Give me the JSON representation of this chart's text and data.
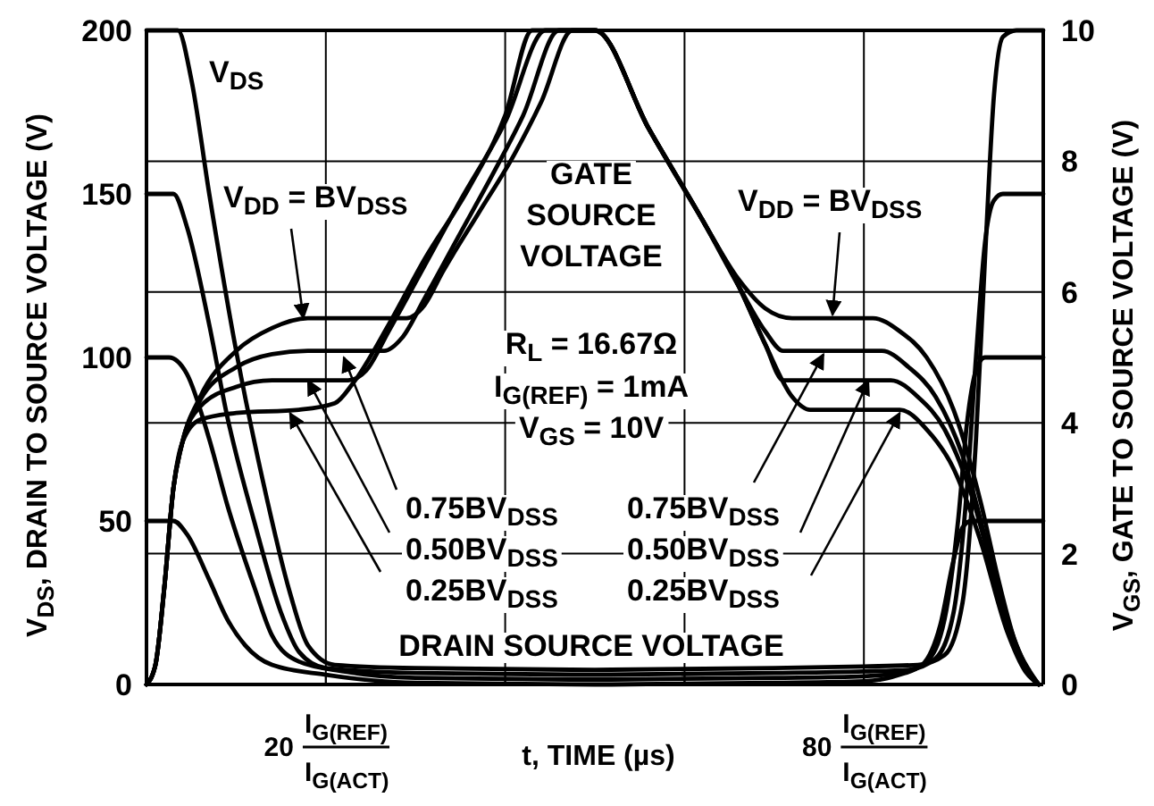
{
  "chart_data": {
    "type": "line",
    "xlabel": "t, TIME (µs)",
    "ylabel": "V$_{DS}$, DRAIN TO SOURCE VOLTAGE (V)",
    "y2label": "V$_{GS}$, GATE TO SOURCE VOLTAGE (V)",
    "xlim": [
      0,
      100
    ],
    "xticks": [
      {
        "value": 20,
        "label": "20 I$_{G(REF)}$ I$_{G(ACT)}$"
      },
      {
        "value": 40,
        "label": null
      },
      {
        "value": 60,
        "label": null
      },
      {
        "value": 80,
        "label": "80 I$_{G(REF)}$ I$_{G(ACT)}$"
      }
    ],
    "ylim": [
      0,
      200
    ],
    "yticks": [
      0,
      50,
      100,
      150,
      200
    ],
    "y2lim": [
      0,
      10
    ],
    "y2ticks": [
      0,
      2,
      4,
      6,
      8,
      10
    ],
    "grid": true,
    "marker": "none",
    "line_style": "solid",
    "series": [
      {
        "color": "#000000",
        "axis": "y",
        "x": [
          0,
          3.5,
          5,
          7,
          10,
          13,
          16,
          18,
          21,
          30,
          50,
          70,
          80,
          86,
          89,
          91,
          92.5,
          93.5,
          94.5,
          95.5,
          97,
          100
        ],
        "values": [
          200,
          200,
          185,
          150,
          102,
          62,
          28,
          12,
          6,
          5,
          4.5,
          5,
          5.5,
          6,
          9,
          25,
          75,
          130,
          180,
          198,
          200,
          200
        ]
      },
      {
        "color": "#000000",
        "axis": "y",
        "x": [
          0,
          3,
          4.5,
          7,
          9,
          12,
          15,
          17,
          20,
          30,
          50,
          70,
          80,
          85,
          88,
          90,
          91.5,
          92.5,
          93.5,
          94.5,
          95.5,
          100
        ],
        "values": [
          150,
          150,
          140,
          110,
          82,
          50,
          22,
          10,
          5,
          3.5,
          3,
          3.5,
          4,
          4.5,
          8,
          22,
          60,
          100,
          135,
          148,
          150,
          150
        ]
      },
      {
        "color": "#000000",
        "axis": "y",
        "x": [
          0,
          2.5,
          4.5,
          7,
          9,
          12,
          14,
          17,
          22,
          30,
          50,
          70,
          80,
          84,
          87,
          89,
          90.5,
          91.5,
          92.5,
          93.5,
          100
        ],
        "values": [
          100,
          100,
          95,
          75,
          55,
          30,
          15,
          7,
          4,
          2,
          1.5,
          2,
          2.5,
          3.5,
          7,
          20,
          50,
          80,
          96,
          100,
          100
        ]
      },
      {
        "color": "#000000",
        "axis": "y",
        "x": [
          0,
          3,
          4.5,
          7,
          9,
          11,
          14,
          20,
          30,
          50,
          70,
          80,
          84,
          86.5,
          88.5,
          90,
          91,
          92,
          100
        ],
        "values": [
          50,
          50,
          46,
          32,
          20,
          12,
          6,
          3,
          0.5,
          0,
          0.5,
          1,
          3,
          6,
          18,
          38,
          48,
          50,
          50
        ]
      },
      {
        "color": "#000000",
        "axis": "y2",
        "x": [
          0,
          1,
          2,
          3,
          4,
          6,
          10,
          14,
          18,
          29,
          31,
          33,
          37,
          41,
          44,
          47.5,
          50,
          56,
          62,
          66,
          69,
          72,
          81,
          84,
          87,
          90,
          93,
          95,
          97,
          98.5,
          99.5
        ],
        "values": [
          0,
          0.3,
          1.5,
          3,
          3.7,
          4.4,
          5.1,
          5.45,
          5.6,
          5.6,
          5.8,
          6.3,
          7.2,
          8.1,
          8.9,
          10,
          10,
          8.5,
          7.1,
          6.2,
          5.75,
          5.6,
          5.6,
          5.4,
          5,
          4.2,
          2.8,
          1.6,
          0.6,
          0.2,
          0
        ]
      },
      {
        "color": "#000000",
        "axis": "y2",
        "x": [
          0,
          1,
          2,
          3,
          4,
          6,
          10,
          14,
          18,
          26.5,
          28.5,
          31,
          35,
          39,
          42,
          46,
          50,
          56,
          62,
          66,
          69,
          71,
          82,
          85,
          88,
          91,
          94,
          96,
          98,
          99.5
        ],
        "values": [
          0,
          0.3,
          1.5,
          3,
          3.7,
          4.35,
          4.85,
          5.05,
          5.1,
          5.1,
          5.3,
          5.9,
          6.9,
          7.9,
          8.7,
          10,
          10,
          8.5,
          7.1,
          6.1,
          5.4,
          5.1,
          5.1,
          4.85,
          4.4,
          3.5,
          2,
          1,
          0.3,
          0
        ]
      },
      {
        "color": "#000000",
        "axis": "y2",
        "x": [
          0,
          1,
          2,
          3,
          4,
          6,
          10,
          14,
          22.5,
          24.5,
          27,
          31,
          35,
          40,
          44.5,
          50,
          56,
          62,
          66,
          69,
          71,
          83,
          86,
          89,
          92,
          95,
          97,
          99.5
        ],
        "values": [
          0,
          0.3,
          1.5,
          3,
          3.7,
          4.25,
          4.55,
          4.65,
          4.65,
          4.8,
          5.4,
          6.4,
          7.4,
          8.6,
          10,
          10,
          8.5,
          7.1,
          6.1,
          5.2,
          4.65,
          4.65,
          4.4,
          3.9,
          2.9,
          1.4,
          0.5,
          0
        ]
      },
      {
        "color": "#000000",
        "axis": "y2",
        "x": [
          0,
          1,
          2,
          3,
          4,
          6,
          10,
          17,
          21,
          23,
          27,
          31,
          36,
          40,
          43,
          50,
          56,
          62,
          66,
          69,
          72,
          74,
          84,
          87,
          90,
          93,
          96,
          98,
          99.5
        ],
        "values": [
          0,
          0.3,
          1.5,
          3,
          3.7,
          4.05,
          4.15,
          4.2,
          4.3,
          4.6,
          5.5,
          6.5,
          7.6,
          8.7,
          10,
          10,
          8.5,
          7.1,
          6.1,
          5.2,
          4.4,
          4.2,
          4.2,
          3.9,
          3.3,
          2.2,
          0.8,
          0.2,
          0
        ]
      }
    ],
    "annotations": [
      "V$_{DS}$",
      {
        "text": "V$_{DD}$ = BV$_{DSS}$",
        "x": 17.5,
        "y": 112
      },
      {
        "text": "0.75BV$_{DSS}$",
        "x": 22,
        "y": 100
      },
      {
        "text": "0.50BV$_{DSS}$",
        "x": 18,
        "y": 93
      },
      {
        "text": "0.25BV$_{DSS}$",
        "x": 16,
        "y": 83
      },
      {
        "text": "V$_{DD}$ = BV$_{DSS}$",
        "x": 76.5,
        "y": 113
      },
      {
        "text": "0.75BV$_{DSS}$",
        "x": 75.5,
        "y": 101
      },
      {
        "text": "0.50BV$_{DSS}$",
        "x": 80.5,
        "y": 93
      },
      {
        "text": "0.25BV$_{DSS}$",
        "x": 84,
        "y": 83
      },
      "GATE\nSOURCE\nVOLTAGE",
      "R$_{L}$ = 16.67Ω",
      "I$_{G(REF)}$ = 1mA",
      "V$_{GS}$ = 10V",
      "DRAIN SOURCE VOLTAGE"
    ]
  }
}
